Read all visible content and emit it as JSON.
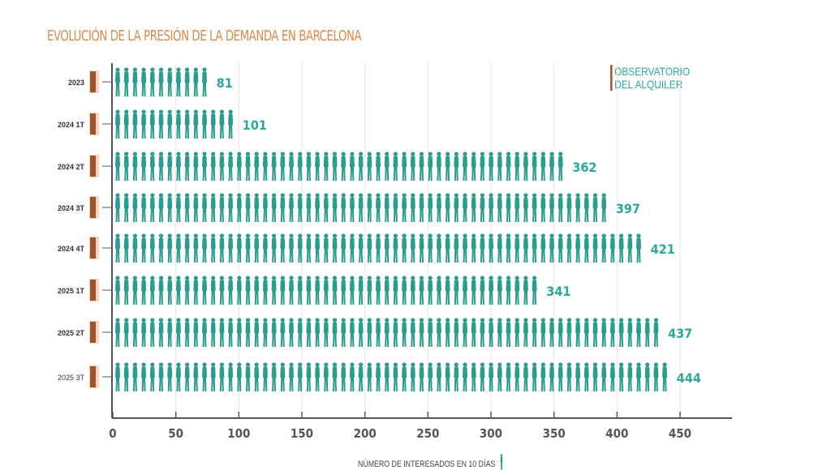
{
  "chart_data": {
    "type": "bar",
    "orientation": "horizontal",
    "title": "EVOLUCIÓN DE LA PRESIÓN DE LA DEMANDA EN BARCELONA",
    "xlabel": "NÚMERO DE INTERESADOS EN 10 DÍAS",
    "ylabel": "",
    "categories": [
      "2023",
      "2024 1T",
      "2024 2T",
      "2024 3T",
      "2024 4T",
      "2025 1T",
      "2025 2T",
      "2025 3T"
    ],
    "values": [
      81,
      101,
      362,
      397,
      421,
      341,
      437,
      444
    ],
    "xlim": [
      0,
      490
    ],
    "xticks": [
      0,
      50,
      100,
      150,
      200,
      250,
      300,
      350,
      400,
      450
    ],
    "grid": "vertical",
    "bar_style": "pictogram-people",
    "category_icon": "door-icon",
    "colors": {
      "bar": "#2a9d8f",
      "label": "#2aa89a",
      "title": "#d98a4a",
      "door": "#a0522d",
      "axis": "#555555"
    }
  },
  "watermark": {
    "line1": "OBSERVATORIO",
    "line2": "DEL ALQUILER"
  }
}
